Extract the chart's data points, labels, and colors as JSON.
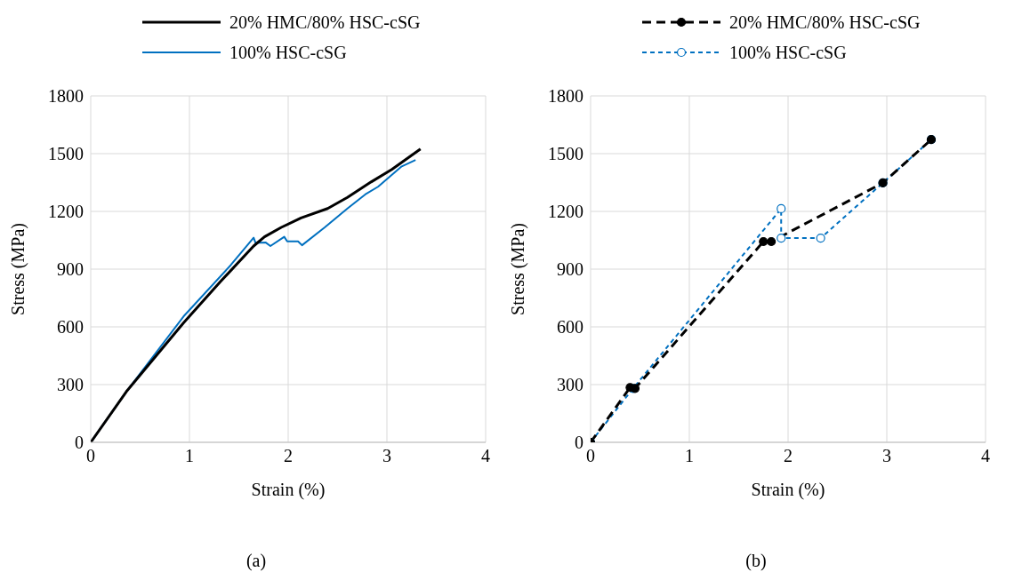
{
  "chart_data": [
    {
      "type": "line",
      "title": "(a)",
      "xlabel": "Strain (%)",
      "ylabel": "Stress (MPa)",
      "xlim": [
        0,
        4
      ],
      "xticks": [
        0,
        1,
        2,
        3,
        4
      ],
      "ylim": [
        0,
        1800
      ],
      "yticks": [
        0,
        300,
        600,
        900,
        1200,
        1500,
        1800
      ],
      "grid": true,
      "legend": "top",
      "marker": "none",
      "line_style": "solid",
      "series": [
        {
          "name": "20% HMC/80% HSC-cSG",
          "color": "#000000",
          "x": [
            0,
            0.36,
            0.94,
            1.31,
            1.65,
            1.76,
            1.93,
            2.13,
            2.4,
            2.6,
            2.84,
            3.05,
            3.34
          ],
          "values": [
            0,
            263,
            621,
            833,
            1020,
            1068,
            1117,
            1166,
            1215,
            1273,
            1353,
            1418,
            1524
          ]
        },
        {
          "name": "100% HSC-cSG",
          "color": "#0070c0",
          "x": [
            0,
            0.36,
            0.94,
            1.42,
            1.65,
            1.67,
            1.77,
            1.82,
            1.96,
            1.99,
            2.1,
            2.14,
            2.37,
            2.6,
            2.78,
            2.91,
            3.15,
            3.29
          ],
          "values": [
            0,
            263,
            654,
            922,
            1063,
            1036,
            1039,
            1020,
            1068,
            1044,
            1044,
            1024,
            1117,
            1215,
            1288,
            1328,
            1434,
            1467
          ]
        }
      ]
    },
    {
      "type": "line",
      "title": "(b)",
      "xlabel": "Strain (%)",
      "ylabel": "Stress (MPa)",
      "xlim": [
        0,
        4
      ],
      "xticks": [
        0,
        1,
        2,
        3,
        4
      ],
      "ylim": [
        0,
        1800
      ],
      "yticks": [
        0,
        300,
        600,
        900,
        1200,
        1500,
        1800
      ],
      "grid": true,
      "legend": "top",
      "marker": "circle",
      "line_style": "dashed",
      "series": [
        {
          "name": "20% HMC/80% HSC-cSG",
          "color": "#000000",
          "x": [
            0,
            0.4,
            0.45,
            1.75,
            1.83,
            2.96,
            3.45
          ],
          "values": [
            0,
            285,
            280,
            1043,
            1043,
            1348,
            1573
          ]
        },
        {
          "name": "100% HSC-cSG",
          "color": "#0070c0",
          "x": [
            0,
            0.43,
            1.93,
            1.93,
            2.33,
            2.96,
            3.45
          ],
          "values": [
            0,
            280,
            1214,
            1061,
            1061,
            1348,
            1573
          ]
        }
      ]
    }
  ]
}
